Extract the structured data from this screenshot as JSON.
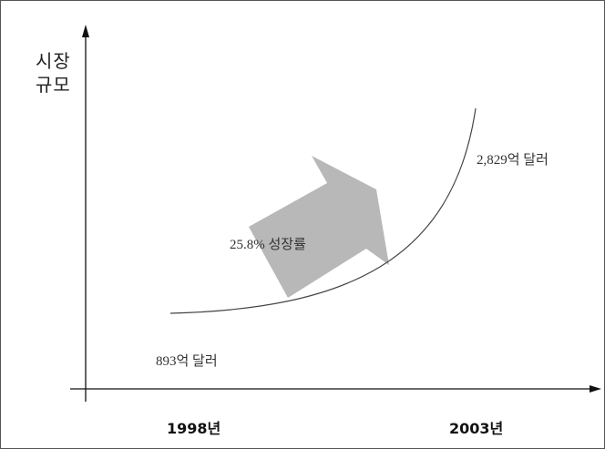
{
  "chart_data": {
    "type": "line",
    "title": "",
    "ylabel_lines": [
      "시장",
      "규모"
    ],
    "categories": [
      "1998년",
      "2003년"
    ],
    "series": [
      {
        "values": [
          893,
          2829
        ]
      }
    ],
    "value_labels": {
      "start": "893억 달러",
      "end": "2,829억 달러"
    },
    "annotation": "25.8% 성장률",
    "grid": false,
    "colors": {
      "axis": "#111111",
      "curve": "#444444",
      "arrow": "#b8b8b8"
    }
  }
}
